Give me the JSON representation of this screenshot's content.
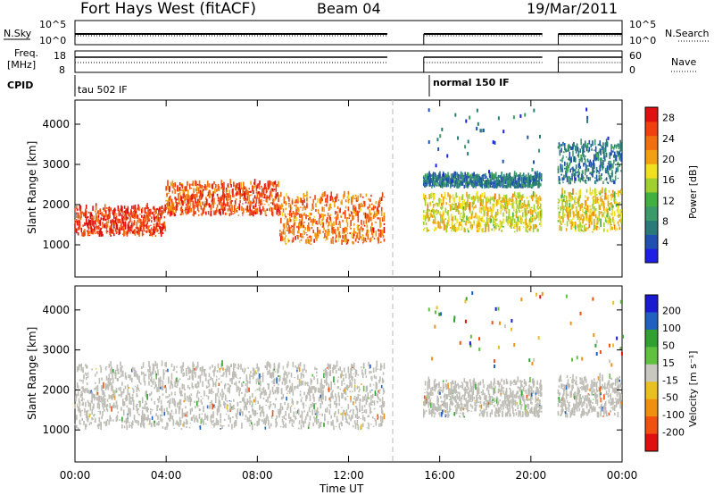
{
  "header": {
    "title": "Fort Hays West (fitACF)",
    "beam": "Beam 04",
    "date": "19/Mar/2011"
  },
  "top_panels": {
    "nsky_label": "N.Sky",
    "nsky_ticks": [
      "10^5",
      "10^0"
    ],
    "nsearch_label": "N.Search",
    "nsearch_ticks": [
      "10^5",
      "10^0"
    ],
    "freq_label_1": "Freq.",
    "freq_label_2": "[MHz]",
    "freq_ticks": [
      "18",
      "8"
    ],
    "nave_label": "Nave",
    "nave_ticks": [
      "60",
      "0"
    ],
    "cpid_label": "CPID",
    "cpid_text_1": "tau 502 IF",
    "cpid_text_2": "normal 150 IF"
  },
  "colors": {
    "power_scale": [
      "#1f1fe6",
      "#2050b0",
      "#2a7a7a",
      "#3a9a6a",
      "#40b040",
      "#a0d030",
      "#f0e020",
      "#f0a010",
      "#f07010",
      "#f04010",
      "#e01010"
    ],
    "velocity_scale": [
      "#1a1ad0",
      "#2060c0",
      "#30a030",
      "#60c040",
      "#c8c8c0",
      "#e8c020",
      "#f09010",
      "#f05010",
      "#e01010"
    ],
    "ground_scatter": "#bdbdb5"
  },
  "chart_data": [
    {
      "type": "heatmap",
      "name": "power",
      "xlabel": "Time UT",
      "ylabel": "Slant Range [km]",
      "x_ticks": [
        "00:00",
        "04:00",
        "08:00",
        "12:00",
        "16:00",
        "20:00",
        "00:00"
      ],
      "y_ticks": [
        1000,
        2000,
        3000,
        4000
      ],
      "ylim": [
        200,
        4600
      ],
      "xlim_hours": [
        0,
        24
      ],
      "colorbar_label": "Power [dB]",
      "colorbar_ticks": [
        4,
        8,
        12,
        16,
        20,
        24,
        28
      ],
      "data_gaps_hours": [
        [
          13.7,
          15.3
        ],
        [
          20.5,
          21.2
        ]
      ],
      "echo_bands": [
        {
          "hours": [
            0.0,
            4.0
          ],
          "range_km": [
            1200,
            1900
          ],
          "power_db": 28
        },
        {
          "hours": [
            4.0,
            9.0
          ],
          "range_km": [
            1700,
            2500
          ],
          "power_db": 26
        },
        {
          "hours": [
            9.0,
            13.6
          ],
          "range_km": [
            1000,
            2200
          ],
          "power_db": 24
        },
        {
          "hours": [
            15.3,
            20.5
          ],
          "range_km": [
            1300,
            2200
          ],
          "power_db": 18
        },
        {
          "hours": [
            15.3,
            20.5
          ],
          "range_km": [
            2400,
            2700
          ],
          "power_db": 6
        },
        {
          "hours": [
            21.2,
            24.0
          ],
          "range_km": [
            1300,
            2300
          ],
          "power_db": 18
        },
        {
          "hours": [
            21.2,
            24.0
          ],
          "range_km": [
            2500,
            3500
          ],
          "power_db": 6
        }
      ]
    },
    {
      "type": "heatmap",
      "name": "velocity",
      "xlabel": "Time UT",
      "ylabel": "Slant Range [km]",
      "x_ticks": [
        "00:00",
        "04:00",
        "08:00",
        "12:00",
        "16:00",
        "20:00",
        "00:00"
      ],
      "y_ticks": [
        1000,
        2000,
        3000,
        4000
      ],
      "ylim": [
        200,
        4600
      ],
      "xlim_hours": [
        0,
        24
      ],
      "colorbar_label": "Velocity [m s⁻¹]",
      "colorbar_ticks": [
        200,
        100,
        50,
        15,
        -15,
        -50,
        -100,
        -200
      ],
      "echo_bands": [
        {
          "hours": [
            0.0,
            13.6
          ],
          "range_km": [
            1000,
            2600
          ],
          "velocity_ms": 0,
          "ground_scatter": true
        },
        {
          "hours": [
            15.3,
            20.5
          ],
          "range_km": [
            1300,
            2200
          ],
          "velocity_ms": 0,
          "ground_scatter": true
        },
        {
          "hours": [
            21.2,
            24.0
          ],
          "range_km": [
            1300,
            2300
          ],
          "velocity_ms": 0,
          "ground_scatter": true
        }
      ]
    }
  ]
}
